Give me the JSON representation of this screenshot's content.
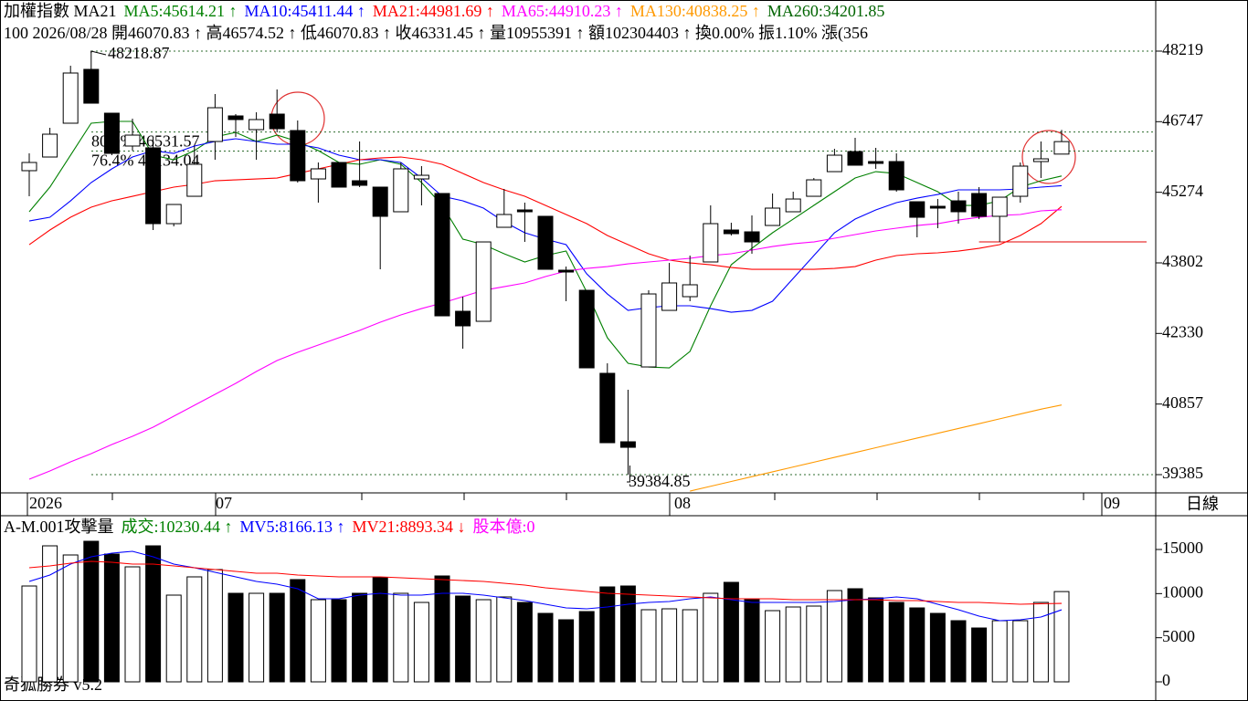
{
  "chart_data": [
    {
      "type": "candlestick",
      "title": "加權指數 MA21",
      "info": "100 2026/08/28 開46070.83 ↑ 高46574.52 ↑ 低46070.83 ↑ 收46331.45 ↑ 量10955391 ↑ 額102304403 ↑ 換0.00% 振1.10% 漲(356",
      "extra_legend": "MA260:34201.85",
      "extra_legend_color": "#006400",
      "ylim": [
        39004,
        49285
      ],
      "yticks": [
        48219,
        46747,
        45274,
        43802,
        42330,
        40857,
        39385
      ],
      "open": [
        45725,
        46010,
        46715,
        47838,
        46924,
        46239,
        46201,
        44620,
        45191,
        46334,
        46867,
        46581,
        46905,
        46562,
        45553,
        45896,
        45515,
        45382,
        44868,
        45553,
        45249,
        42792,
        42583,
        44544,
        44906,
        44773,
        43649,
        43230,
        41498,
        40070,
        41631,
        42811,
        43097,
        43821,
        44487,
        44449,
        44582,
        44868,
        45191,
        45705,
        46124,
        45915,
        45915,
        45077,
        44982,
        45096,
        45249,
        44773,
        45191,
        45915,
        46070.83
      ],
      "high": [
        46086,
        46619,
        47914,
        48218.87,
        46924,
        46810,
        46429,
        45020,
        46239,
        47324,
        46905,
        46943,
        47419,
        46772,
        45896,
        45896,
        46334,
        45382,
        45896,
        45820,
        45249,
        43097,
        44239,
        45344,
        45058,
        44773,
        43725,
        43230,
        41707,
        41155,
        43230,
        43801,
        43954,
        45001,
        44639,
        44792,
        45249,
        45287,
        45572,
        46181,
        46410,
        46201,
        46086,
        45077,
        45134,
        45287,
        45382,
        45172,
        45896,
        46334,
        46574.52
      ],
      "low": [
        45191,
        46010,
        46715,
        47133,
        46048,
        46143,
        44487,
        44563,
        45191,
        45953,
        46429,
        45953,
        46524,
        45477,
        45058,
        45382,
        45382,
        43668,
        44868,
        45001,
        42697,
        42012,
        42583,
        44544,
        44239,
        43668,
        43002,
        41612,
        40051,
        39384.85,
        41631,
        42811,
        43002,
        43821,
        44373,
        43992,
        44582,
        44868,
        45191,
        45705,
        45839,
        45763,
        45287,
        44335,
        44525,
        44620,
        44715,
        44239,
        45058,
        45572,
        46070.83
      ],
      "close": [
        45896,
        46486,
        47762,
        47133,
        46086,
        46467,
        44620,
        45020,
        45858,
        47038,
        46791,
        46791,
        46600,
        45515,
        45763,
        45382,
        45420,
        44773,
        45763,
        45629,
        42697,
        42488,
        44239,
        44811,
        44868,
        43668,
        43611,
        41612,
        40051,
        39955,
        43154,
        43383,
        43345,
        44620,
        44411,
        44239,
        44944,
        45134,
        45534,
        46048,
        45839,
        45877,
        45325,
        44753,
        44944,
        44868,
        44773,
        45172,
        45820,
        45972,
        46331.45
      ],
      "series": [
        {
          "name": "MA5:45614.21 ↑",
          "color": "#008000",
          "values": [
            44868,
            45382,
            46048,
            46715,
            46753,
            46753,
            46048,
            45953,
            46143,
            46429,
            46524,
            46334,
            46467,
            46334,
            46143,
            45896,
            45858,
            45953,
            45858,
            45477,
            45001,
            44297,
            44182,
            43992,
            43821,
            43954,
            44049,
            43192,
            42240,
            41707,
            41631,
            41612,
            41955,
            42907,
            43763,
            44106,
            44430,
            44715,
            45001,
            45287,
            45572,
            45705,
            45667,
            45477,
            45287,
            45001,
            45001,
            45096,
            45382,
            45515,
            45614.21
          ]
        },
        {
          "name": "MA10:45411.44 ↑",
          "color": "#0000ff",
          "values": [
            44677,
            44753,
            45096,
            45477,
            45763,
            46010,
            46143,
            46086,
            46239,
            46334,
            46391,
            46334,
            46277,
            46277,
            46201,
            46048,
            45953,
            45953,
            45896,
            45572,
            45191,
            45096,
            44944,
            44658,
            44430,
            44297,
            44182,
            43573,
            43154,
            42811,
            42869,
            42907,
            42907,
            42849,
            42773,
            42811,
            43002,
            43478,
            43954,
            44430,
            44715,
            44906,
            45058,
            45153,
            45229,
            45325,
            45325,
            45325,
            45344,
            45382,
            45411.44
          ]
        },
        {
          "name": "MA21:44981.69 ↑",
          "color": "#ff0000",
          "values": [
            44182,
            44487,
            44753,
            44963,
            45096,
            45191,
            45287,
            45382,
            45439,
            45515,
            45534,
            45553,
            45572,
            45667,
            45763,
            45858,
            45953,
            45991,
            46010,
            45953,
            45858,
            45667,
            45477,
            45325,
            45191,
            45001,
            44811,
            44620,
            44373,
            44182,
            43992,
            43859,
            43801,
            43763,
            43706,
            43668,
            43668,
            43668,
            43668,
            43687,
            43725,
            43859,
            43954,
            43992,
            44011,
            44049,
            44106,
            44182,
            44373,
            44620,
            44981.69
          ]
        },
        {
          "name": "MA65:44910.23 ↑",
          "color": "#ff00ff",
          "values": [
            39289,
            39460,
            39651,
            39822,
            40013,
            40184,
            40374,
            40603,
            40831,
            41060,
            41288,
            41536,
            41764,
            41936,
            42088,
            42240,
            42393,
            42564,
            42716,
            42849,
            42964,
            43097,
            43230,
            43306,
            43383,
            43516,
            43630,
            43687,
            43725,
            43782,
            43821,
            43859,
            43897,
            43954,
            43992,
            44068,
            44144,
            44201,
            44239,
            44316,
            44392,
            44468,
            44525,
            44582,
            44620,
            44696,
            44753,
            44792,
            44811,
            44887,
            44910.23
          ]
        },
        {
          "name": "MA130:40838.25 ↑",
          "color": "#ff9900",
          "values": [
            null,
            null,
            null,
            null,
            null,
            null,
            null,
            null,
            null,
            null,
            null,
            null,
            null,
            null,
            null,
            null,
            null,
            null,
            null,
            null,
            null,
            null,
            null,
            null,
            null,
            null,
            null,
            null,
            null,
            null,
            null,
            null,
            39041,
            39142,
            39242,
            39343,
            39443,
            39544,
            39644,
            39745,
            39845,
            39946,
            40046,
            40147,
            40247,
            40348,
            40448,
            40549,
            40649,
            40750,
            40838.25
          ]
        }
      ],
      "high_mark": 48218.87,
      "low_mark": 39384.85,
      "annotations": [
        {
          "text": "80.9% 46531.57",
          "value": 46531.57
        },
        {
          "text": "76.4% 46134.04",
          "value": 46134.04
        }
      ],
      "hline": {
        "value": 44239,
        "color": "#e00000"
      }
    },
    {
      "type": "bar",
      "title": "A-M.001攻擊量",
      "volume_label": "成交:10230.44 ↑",
      "volume_label_color": "#008000",
      "capital_label": "股本億:0",
      "capital_label_color": "#ff00ff",
      "ylim": [
        -2172,
        18828
      ],
      "yticks": [
        0,
        5000,
        10000,
        15000
      ],
      "values": [
        10862,
        15414,
        14379,
        15931,
        14483,
        13034,
        15414,
        9828,
        11897,
        12724,
        10034,
        10034,
        10034,
        11586,
        9310,
        9310,
        10034,
        11793,
        10034,
        9000,
        12000,
        9724,
        9310,
        9621,
        9000,
        7759,
        7034,
        7965,
        10759,
        10862,
        8172,
        8276,
        8172,
        10034,
        11276,
        9414,
        8069,
        8483,
        8586,
        10345,
        10552,
        9517,
        9000,
        8379,
        7759,
        6931,
        6103,
        6931,
        6931,
        9000,
        10230.44
      ],
      "series": [
        {
          "name": "MV5:8166.13 ↑",
          "color": "#0000ff",
          "values": [
            11380,
            12104,
            13345,
            14173,
            14586,
            14793,
            14173,
            13345,
            12931,
            12414,
            11897,
            11380,
            11069,
            10552,
            9414,
            9414,
            9828,
            10034,
            9828,
            9828,
            10034,
            10034,
            9828,
            9517,
            9207,
            8793,
            8379,
            8276,
            8483,
            8793,
            9000,
            9104,
            9414,
            9621,
            9310,
            9000,
            9000,
            9000,
            9000,
            9104,
            9310,
            9414,
            9621,
            9414,
            8793,
            8172,
            7448,
            6931,
            7034,
            7345,
            8166.13
          ]
        },
        {
          "name": "MV21:8893.34 ↓",
          "color": "#ff0000",
          "values": [
            12931,
            13138,
            13449,
            13655,
            13552,
            13345,
            13345,
            13138,
            12931,
            12724,
            12517,
            12310,
            12310,
            12104,
            12000,
            11897,
            11897,
            11897,
            11793,
            11690,
            11586,
            11483,
            11380,
            11173,
            10966,
            10655,
            10448,
            10242,
            10034,
            9931,
            9828,
            9724,
            9621,
            9517,
            9414,
            9414,
            9414,
            9310,
            9310,
            9310,
            9310,
            9310,
            9207,
            9207,
            9104,
            9000,
            9000,
            8897,
            8793,
            8850,
            8893.34
          ]
        }
      ]
    }
  ],
  "x_labels": [
    "2026",
    "07",
    "08",
    "09"
  ],
  "period_label": "日線",
  "footer": "奇狐勝券 v5.2"
}
